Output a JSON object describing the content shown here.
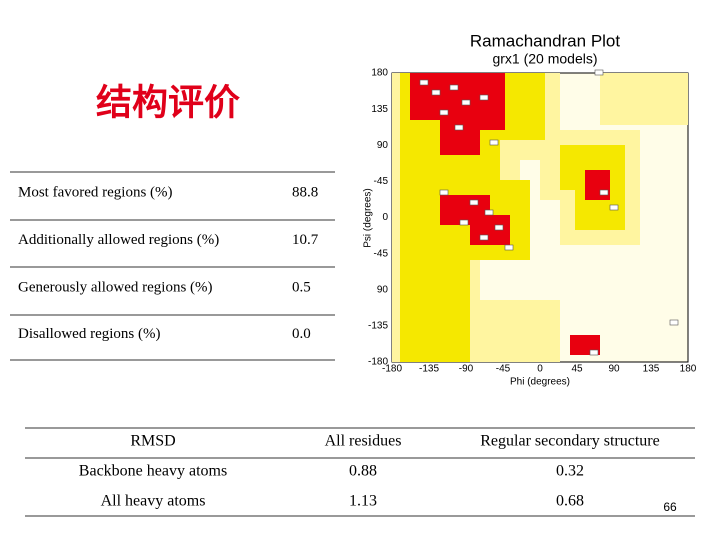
{
  "slide_title": "结构评价",
  "regions_table": {
    "rows": [
      [
        "Most favored regions (%)",
        "88.8"
      ],
      [
        "Additionally allowed regions (%)",
        "10.7"
      ],
      [
        "Generously allowed regions (%)",
        "0.5"
      ],
      [
        "Disallowed regions (%)",
        "0.0"
      ]
    ]
  },
  "figure": {
    "title": "Ramachandran Plot",
    "subtitle": "grx1 (20 models)",
    "y_label": "Psi (degrees)",
    "x_label": "Phi (degrees)",
    "y_ticks": [
      "180",
      "135",
      "90",
      "-45",
      "0",
      "-45",
      "90",
      "-135",
      "-180"
    ],
    "x_ticks": [
      "-180",
      "-135",
      "-90",
      "-45",
      "0",
      "45",
      "90",
      "135",
      "180"
    ]
  },
  "rmsd_table": {
    "header": [
      "RMSD",
      "All residues",
      "Regular secondary structure"
    ],
    "rows": [
      [
        "Backbone heavy atoms",
        "0.88",
        "0.32"
      ],
      [
        "All heavy atoms",
        "1.13",
        "0.68"
      ]
    ]
  },
  "page_number": "66"
}
